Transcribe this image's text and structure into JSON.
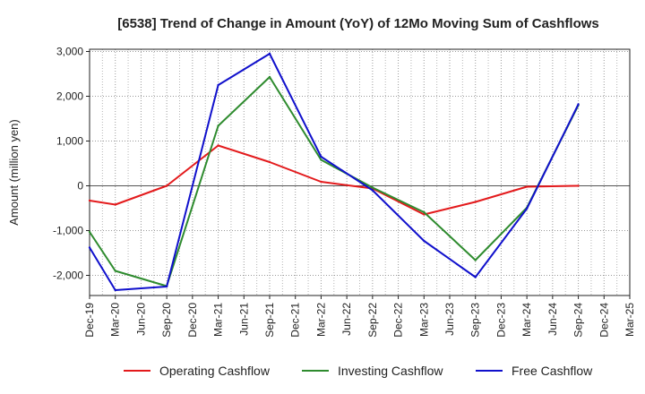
{
  "chart_data": {
    "type": "line",
    "title": "[6538]  Trend of Change in Amount (YoY) of 12Mo Moving Sum of Cashflows",
    "xlabel": "",
    "ylabel": "Amount (million yen)",
    "ylim": [
      -2450,
      3050
    ],
    "yticks": [
      3000,
      2000,
      1000,
      0,
      -1000,
      -2000
    ],
    "ytick_labels": [
      "3,000",
      "2,000",
      "1,000",
      "0",
      "-1,000",
      "-2,000"
    ],
    "categories": [
      "Dec-19",
      "Mar-20",
      "Jun-20",
      "Sep-20",
      "Dec-20",
      "Mar-21",
      "Jun-21",
      "Sep-21",
      "Dec-21",
      "Mar-22",
      "Jun-22",
      "Sep-22",
      "Dec-22",
      "Mar-23",
      "Jun-23",
      "Sep-23",
      "Dec-23",
      "Mar-24",
      "Jun-24",
      "Sep-24",
      "Dec-24",
      "Mar-25"
    ],
    "grid": true,
    "legend_position": "bottom",
    "series": [
      {
        "name": "Operating Cashflow",
        "color": "#e31a1c",
        "values": [
          -330,
          -420,
          null,
          0,
          null,
          900,
          null,
          530,
          null,
          90,
          null,
          -60,
          null,
          -640,
          null,
          -360,
          null,
          -20,
          null,
          0,
          null,
          null
        ]
      },
      {
        "name": "Investing Cashflow",
        "color": "#2e8b2e",
        "values": [
          -1030,
          -1900,
          null,
          -2240,
          null,
          1340,
          null,
          2430,
          null,
          580,
          null,
          -40,
          null,
          -590,
          null,
          -1660,
          null,
          -490,
          null,
          1800,
          null,
          null
        ]
      },
      {
        "name": "Free Cashflow",
        "color": "#1010cc",
        "values": [
          -1380,
          -2330,
          null,
          -2250,
          null,
          2250,
          null,
          2950,
          null,
          650,
          null,
          -100,
          null,
          -1230,
          null,
          -2040,
          null,
          -510,
          null,
          1820,
          null,
          null
        ]
      }
    ]
  }
}
